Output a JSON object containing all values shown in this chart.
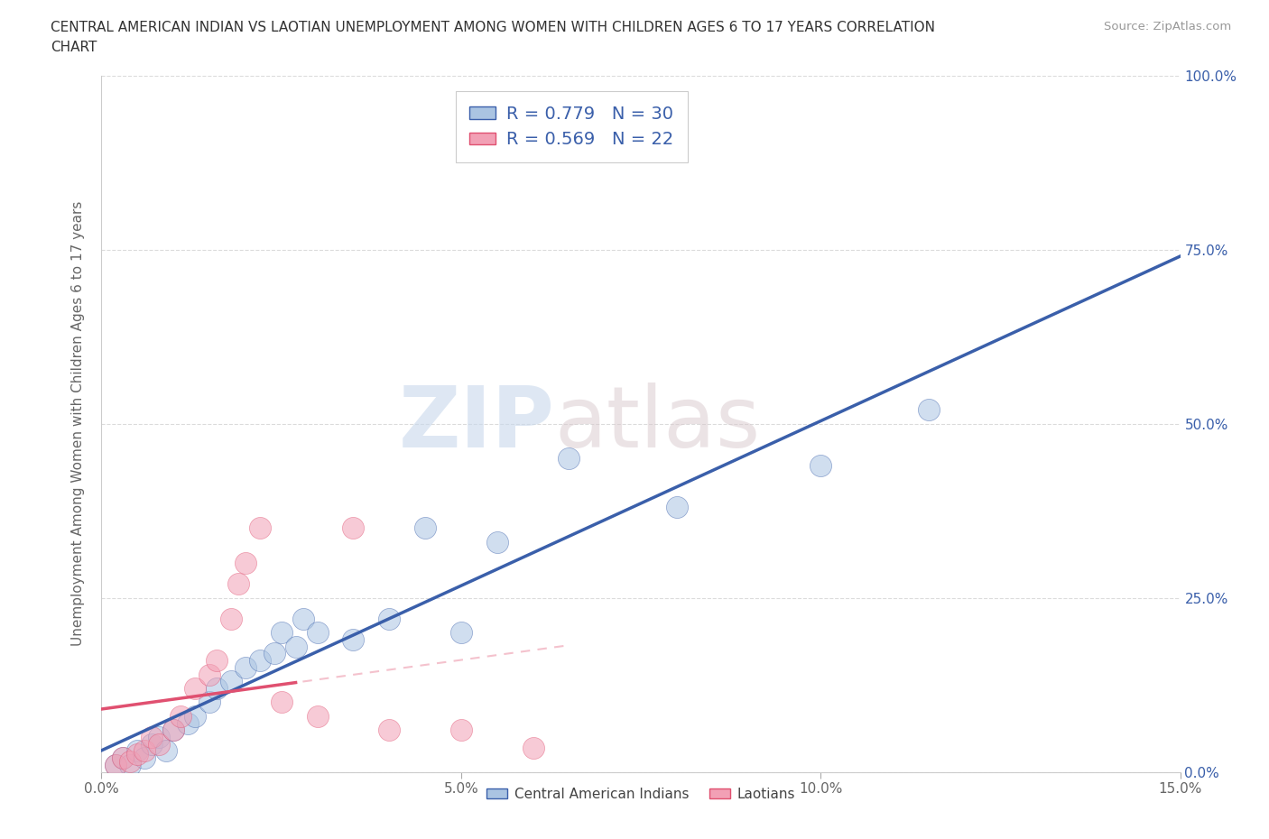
{
  "title_line1": "CENTRAL AMERICAN INDIAN VS LAOTIAN UNEMPLOYMENT AMONG WOMEN WITH CHILDREN AGES 6 TO 17 YEARS CORRELATION",
  "title_line2": "CHART",
  "source": "Source: ZipAtlas.com",
  "ylabel": "Unemployment Among Women with Children Ages 6 to 17 years",
  "xlim": [
    0.0,
    0.15
  ],
  "ylim": [
    0.0,
    1.0
  ],
  "xticks": [
    0.0,
    0.05,
    0.1,
    0.15
  ],
  "xticklabels": [
    "0.0%",
    "5.0%",
    "10.0%",
    "15.0%"
  ],
  "yticks": [
    0.0,
    0.25,
    0.5,
    0.75,
    1.0
  ],
  "yticklabels": [
    "0.0%",
    "25.0%",
    "50.0%",
    "75.0%",
    "100.0%"
  ],
  "blue_R": 0.779,
  "blue_N": 30,
  "pink_R": 0.569,
  "pink_N": 22,
  "blue_color": "#aac4e2",
  "pink_color": "#f2a0b5",
  "blue_line_color": "#3a5faa",
  "pink_line_color": "#e05070",
  "watermark_zip": "ZIP",
  "watermark_atlas": "atlas",
  "blue_points": [
    [
      0.002,
      0.01
    ],
    [
      0.003,
      0.02
    ],
    [
      0.004,
      0.01
    ],
    [
      0.005,
      0.03
    ],
    [
      0.006,
      0.02
    ],
    [
      0.007,
      0.04
    ],
    [
      0.008,
      0.05
    ],
    [
      0.009,
      0.03
    ],
    [
      0.01,
      0.06
    ],
    [
      0.012,
      0.07
    ],
    [
      0.013,
      0.08
    ],
    [
      0.015,
      0.1
    ],
    [
      0.016,
      0.12
    ],
    [
      0.018,
      0.13
    ],
    [
      0.02,
      0.15
    ],
    [
      0.022,
      0.16
    ],
    [
      0.024,
      0.17
    ],
    [
      0.025,
      0.2
    ],
    [
      0.027,
      0.18
    ],
    [
      0.028,
      0.22
    ],
    [
      0.03,
      0.2
    ],
    [
      0.035,
      0.19
    ],
    [
      0.04,
      0.22
    ],
    [
      0.045,
      0.35
    ],
    [
      0.05,
      0.2
    ],
    [
      0.055,
      0.33
    ],
    [
      0.065,
      0.45
    ],
    [
      0.08,
      0.38
    ],
    [
      0.1,
      0.44
    ],
    [
      0.115,
      0.52
    ]
  ],
  "pink_points": [
    [
      0.002,
      0.01
    ],
    [
      0.003,
      0.02
    ],
    [
      0.004,
      0.015
    ],
    [
      0.005,
      0.025
    ],
    [
      0.006,
      0.03
    ],
    [
      0.007,
      0.05
    ],
    [
      0.008,
      0.04
    ],
    [
      0.01,
      0.06
    ],
    [
      0.011,
      0.08
    ],
    [
      0.013,
      0.12
    ],
    [
      0.015,
      0.14
    ],
    [
      0.016,
      0.16
    ],
    [
      0.018,
      0.22
    ],
    [
      0.019,
      0.27
    ],
    [
      0.02,
      0.3
    ],
    [
      0.022,
      0.35
    ],
    [
      0.025,
      0.1
    ],
    [
      0.03,
      0.08
    ],
    [
      0.035,
      0.35
    ],
    [
      0.04,
      0.06
    ],
    [
      0.05,
      0.06
    ],
    [
      0.06,
      0.035
    ]
  ],
  "pink_line_xstart": 0.0,
  "pink_line_xend": 0.027,
  "pink_dash_xstart": 0.0,
  "pink_dash_xend": 0.065,
  "legend_label_blue": "Central American Indians",
  "legend_label_pink": "Laotians",
  "background_color": "#ffffff",
  "grid_color": "#cccccc"
}
